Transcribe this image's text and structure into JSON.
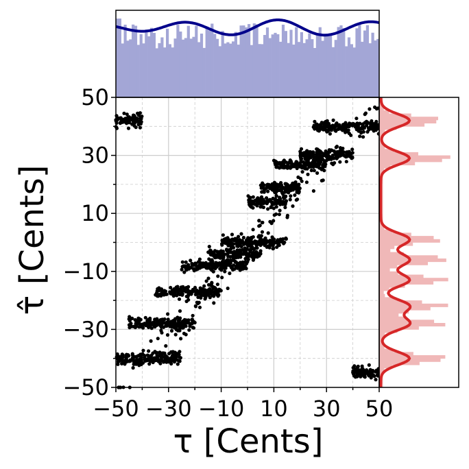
{
  "chart_data": {
    "type": "scatter",
    "xlabel": "τ [Cents]",
    "ylabel": "τ̂ [Cents]",
    "xlim": [
      -50,
      50
    ],
    "ylim": [
      -50,
      50
    ],
    "xticks": [
      -50,
      -30,
      -10,
      10,
      30,
      50
    ],
    "yticks": [
      -50,
      -30,
      -10,
      10,
      30,
      50
    ],
    "xtick_labels": [
      "−50",
      "−30",
      "−10",
      "10",
      "30",
      "50"
    ],
    "ytick_labels": [
      "−50",
      "−30",
      "−10",
      "10",
      "30",
      "50"
    ],
    "grid": true,
    "colors": {
      "scatter": "#000000",
      "top_hist": "#a3a6d6",
      "top_kde": "#00008b",
      "right_hist": "#f0b8b8",
      "right_kde": "#d62728",
      "grid": "#cccccc"
    },
    "clusters": [
      {
        "x": [
          -50,
          -40
        ],
        "y": 42
      },
      {
        "x": [
          -50,
          -25
        ],
        "y": -40
      },
      {
        "x": [
          -45,
          -20
        ],
        "y": -28
      },
      {
        "x": [
          -35,
          -10
        ],
        "y": -17
      },
      {
        "x": [
          -25,
          0
        ],
        "y": -8
      },
      {
        "x": [
          -15,
          5
        ],
        "y": -4
      },
      {
        "x": [
          -10,
          15
        ],
        "y": 0
      },
      {
        "x": [
          0,
          15
        ],
        "y": 14
      },
      {
        "x": [
          5,
          20
        ],
        "y": 19
      },
      {
        "x": [
          10,
          30
        ],
        "y": 27
      },
      {
        "x": [
          20,
          40
        ],
        "y": 30
      },
      {
        "x": [
          25,
          50
        ],
        "y": 40
      },
      {
        "x": [
          40,
          50
        ],
        "y": -45
      }
    ],
    "right_hist_peaks": [
      42,
      29,
      1,
      -6,
      -13,
      -22,
      -28,
      -40
    ],
    "top_hist": {
      "type": "histogram",
      "range": [
        -50,
        50
      ],
      "shape": "roughly uniform"
    },
    "right_hist": {
      "type": "histogram",
      "range": [
        -50,
        50
      ],
      "shape": "multi-peaked"
    }
  }
}
